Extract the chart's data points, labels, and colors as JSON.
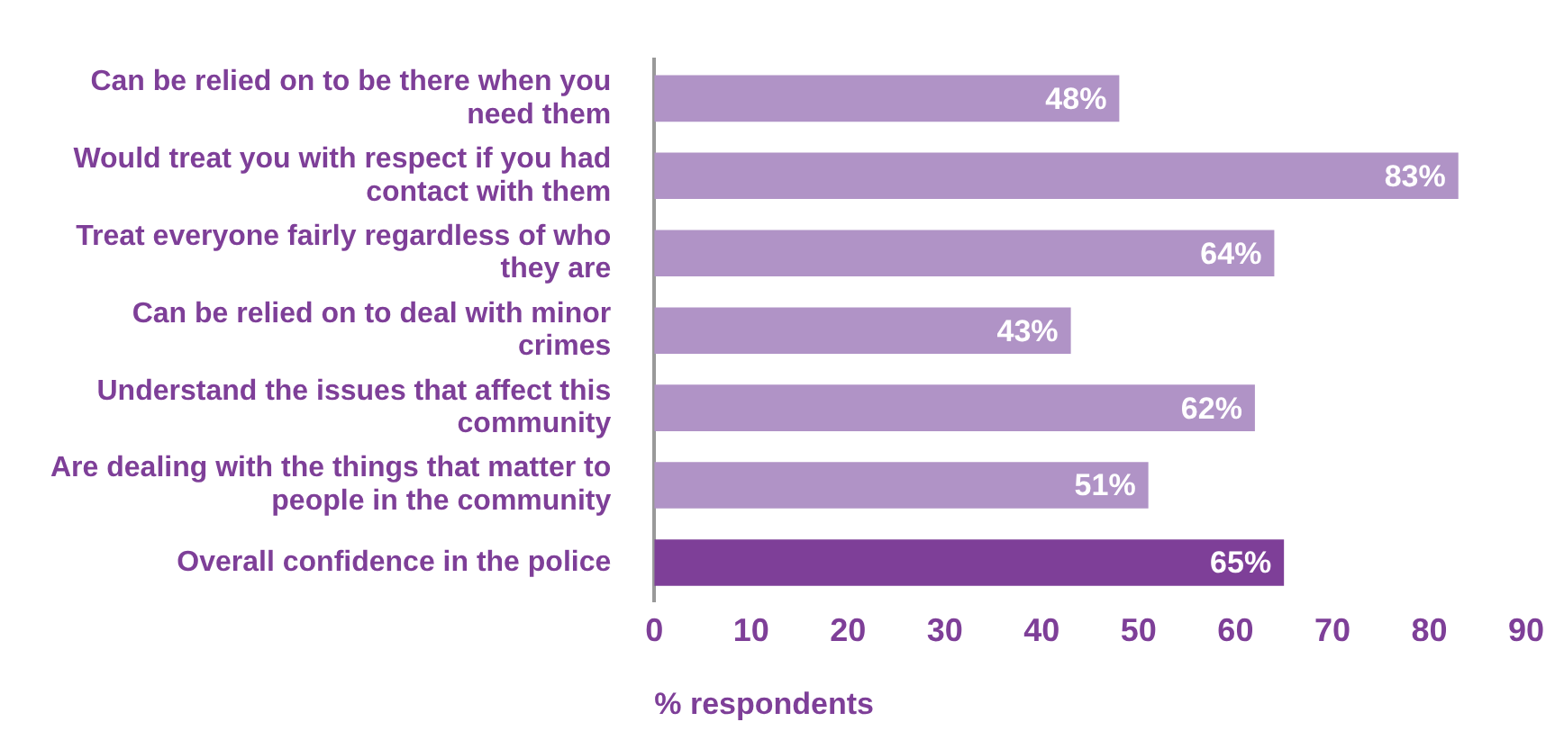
{
  "chart_data": {
    "type": "bar",
    "orientation": "horizontal",
    "xlabel": "% respondents",
    "categories": [
      "Can be relied on to be there when you need them",
      "Would treat you with respect if you had contact with them",
      "Treat everyone fairly regardless of who they are",
      "Can be relied on to deal with minor crimes",
      "Understand the issues that affect this community",
      "Are dealing with the things that matter to people in the community",
      "Overall confidence in the police"
    ],
    "values": [
      48,
      83,
      64,
      43,
      62,
      51,
      65
    ],
    "colors": [
      "#b093c6",
      "#b093c6",
      "#b093c6",
      "#b093c6",
      "#b093c6",
      "#b093c6",
      "#7e3f98"
    ],
    "value_labels": [
      "48%",
      "83%",
      "64%",
      "43%",
      "62%",
      "51%",
      "65%"
    ],
    "xlim": [
      0,
      90
    ],
    "xticks": [
      0,
      10,
      20,
      30,
      40,
      50,
      60,
      70,
      80,
      90
    ],
    "grid": false,
    "legend": false
  }
}
